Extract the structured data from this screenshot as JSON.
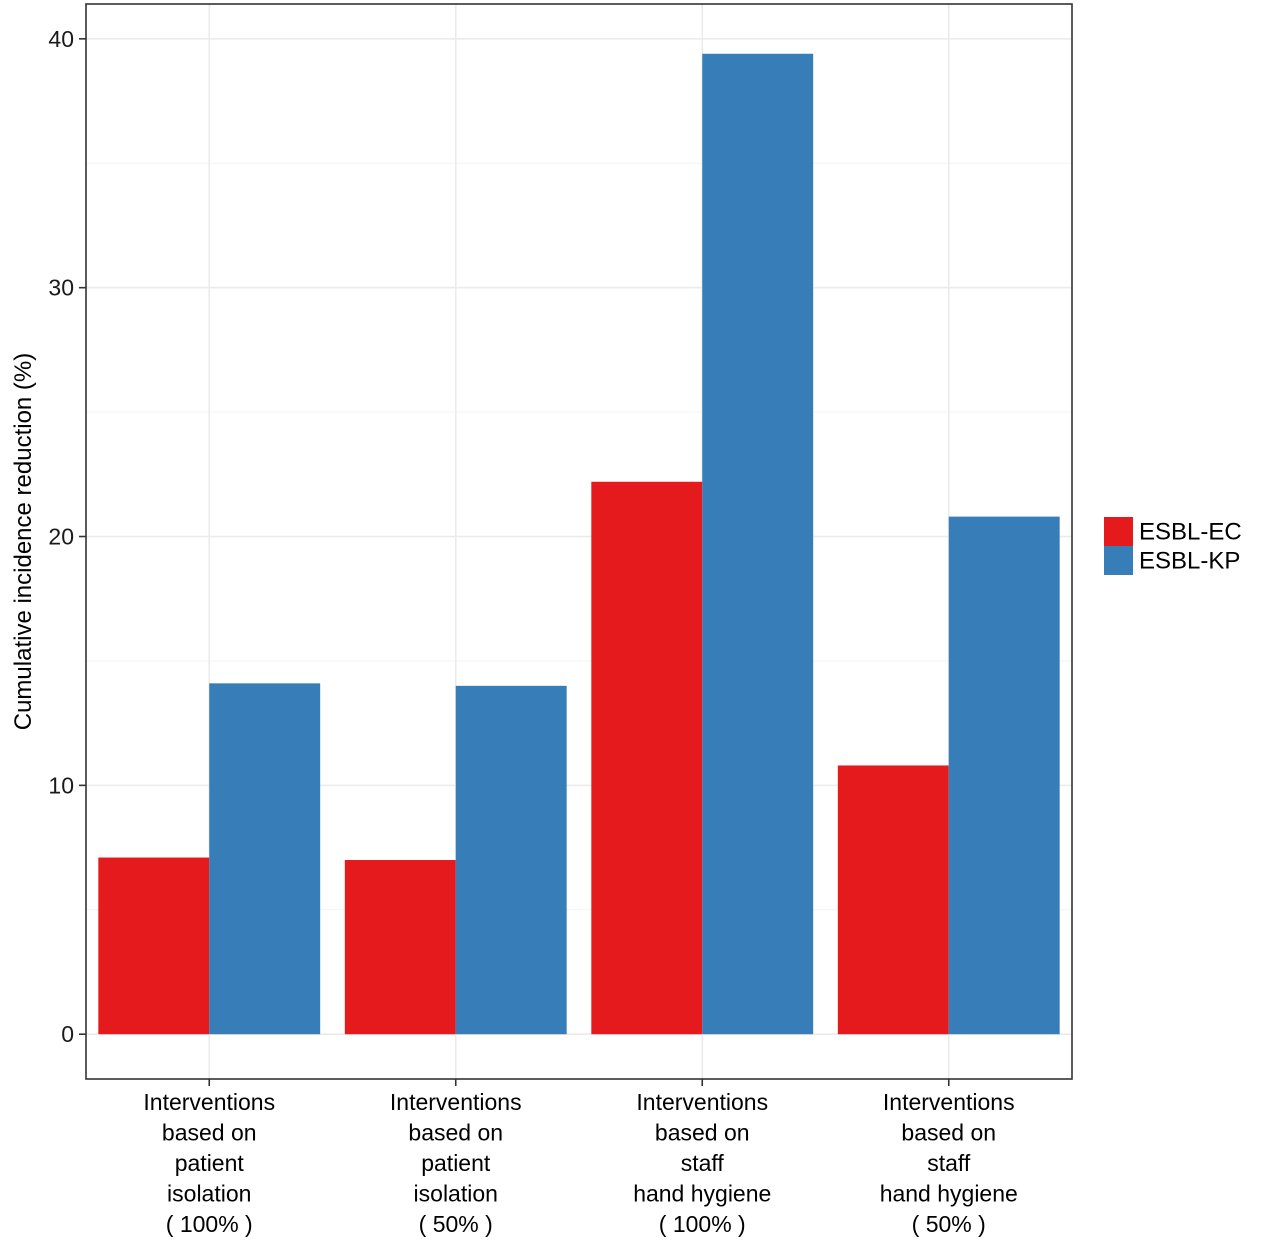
{
  "chart_data": {
    "type": "bar",
    "ylabel": "Cumulative incidence reduction (%)",
    "xlabel": "",
    "ylim": [
      -1.8,
      41.4
    ],
    "yticks": [
      0,
      10,
      20,
      30,
      40
    ],
    "grid": true,
    "legend_position": "right",
    "categories": [
      [
        "Interventions",
        "based on",
        "patient",
        "isolation",
        "( 100% )"
      ],
      [
        "Interventions",
        "based on",
        "patient",
        "isolation",
        "( 50% )"
      ],
      [
        "Interventions",
        "based on",
        "staff",
        "hand hygiene",
        "( 100% )"
      ],
      [
        "Interventions",
        "based on",
        "staff",
        "hand hygiene",
        "( 50% )"
      ]
    ],
    "series": [
      {
        "name": "ESBL-EC",
        "color": "#e41a1c",
        "values": [
          7.1,
          7.0,
          22.2,
          10.8
        ]
      },
      {
        "name": "ESBL-KP",
        "color": "#377eb8",
        "values": [
          14.1,
          14.0,
          39.4,
          20.8
        ]
      }
    ]
  }
}
